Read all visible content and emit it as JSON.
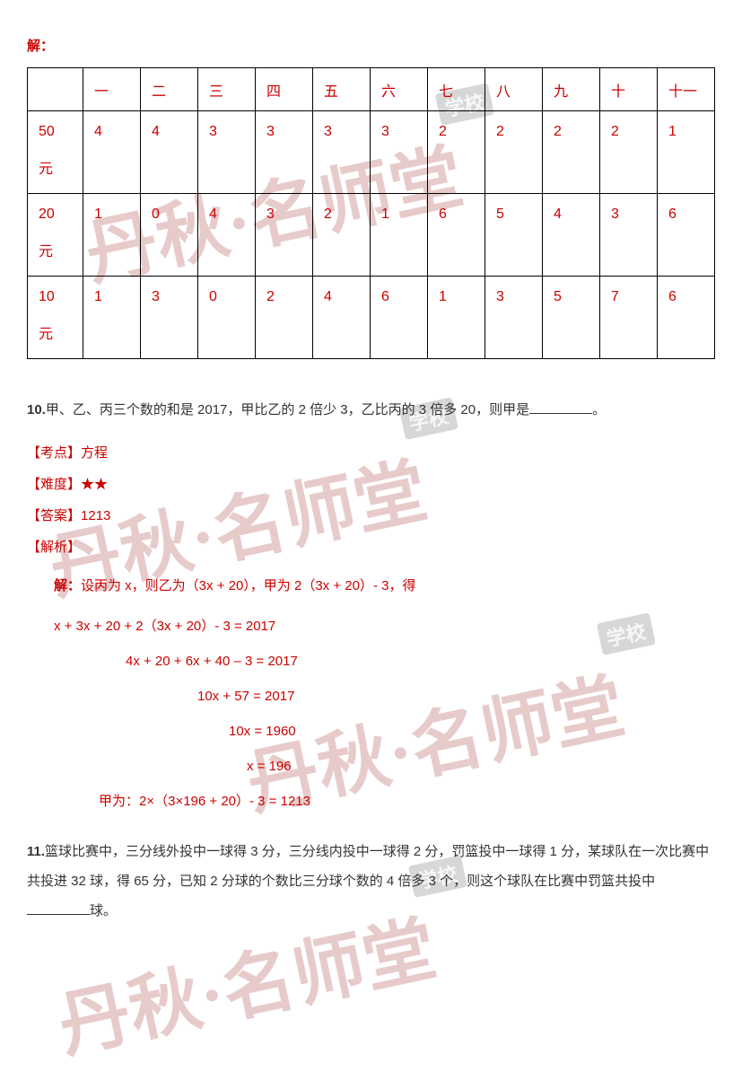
{
  "watermark": {
    "text": "丹秋·名师堂",
    "tag": "学校"
  },
  "solution_label": "解：",
  "table": {
    "header": [
      "",
      "一",
      "二",
      "三",
      "四",
      "五",
      "六",
      "七",
      "八",
      "九",
      "十",
      "十一"
    ],
    "rows": [
      {
        "label": "50元",
        "cells": [
          "4",
          "4",
          "3",
          "3",
          "3",
          "3",
          "2",
          "2",
          "2",
          "2",
          "1"
        ]
      },
      {
        "label": "20元",
        "cells": [
          "1",
          "0",
          "4",
          "3",
          "2",
          "1",
          "6",
          "5",
          "4",
          "3",
          "6"
        ]
      },
      {
        "label": "10元",
        "cells": [
          "1",
          "3",
          "0",
          "2",
          "4",
          "6",
          "1",
          "3",
          "5",
          "7",
          "6"
        ]
      }
    ]
  },
  "q10": {
    "num": "10.",
    "text_a": "甲、乙、丙三个数的和是 2017，甲比乙的 2 倍少 3，乙比丙的 3 倍多 20，则甲是",
    "text_b": "。",
    "kaodian_label": "【考点】",
    "kaodian": "方程",
    "nandu_label": "【难度】",
    "nandu": "★★",
    "daan_label": "【答案】",
    "daan": "1213",
    "jiexi_label": "【解析】",
    "sol_label": "解：",
    "sol_intro": "设丙为 x，则乙为（3x + 20），甲为 2（3x + 20）- 3，得",
    "eq1": "x + 3x + 20 + 2（3x + 20）- 3 = 2017",
    "eq2": "4x + 20 + 6x + 40 – 3 = 2017",
    "eq3": "10x + 57 = 2017",
    "eq4": "10x = 1960",
    "eq5": "x = 196",
    "eq6": "甲为：2×（3×196 + 20）- 3 = 1213"
  },
  "q11": {
    "num": "11.",
    "text_a": "篮球比赛中，三分线外投中一球得 3 分，三分线内投中一球得 2 分，罚篮投中一球得 1 分，某球队在一次比赛中共投进 32 球，得 65 分，已知 2 分球的个数比三分球个数的 4 倍多 3 个，则这个球队在比赛中罚篮共投中",
    "text_b": "球。"
  }
}
